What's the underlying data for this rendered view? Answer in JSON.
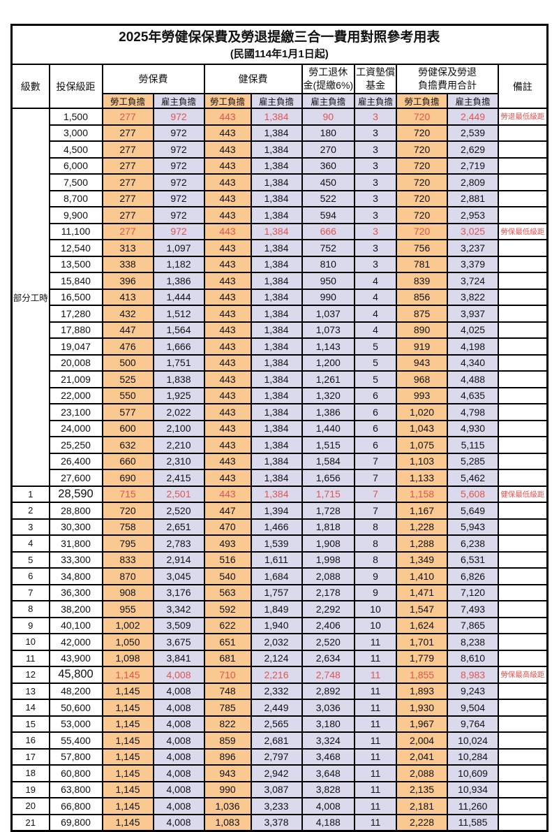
{
  "title": "2025年勞健保保費及勞退提繳三合一費用對照參考用表",
  "subtitle": "(民國114年1月1日起)",
  "colors": {
    "employee_bg": "#F9C991",
    "employer_bg": "#DBD9EC",
    "highlight_red": "#E25450"
  },
  "header": {
    "level": "級數",
    "bracket": "投保級距",
    "labor_ins": "勞保費",
    "health_ins": "健保費",
    "pension_line1": "勞工退休",
    "pension_line2": "金(提繳6%)",
    "wage_fund_line1": "工資墊償",
    "wage_fund_line2": "基金",
    "total_line1": "勞健保及勞退",
    "total_line2": "負擔費用合計",
    "note": "備註",
    "employee": "勞工負擔",
    "employer": "雇主負擔"
  },
  "group_label": "部分工時",
  "rows": [
    {
      "level": "",
      "bracket": "1,500",
      "values": [
        "277",
        "972",
        "443",
        "1,384",
        "90",
        "3",
        "720",
        "2,449"
      ],
      "note": "勞退最低級距",
      "emphasis": false
    },
    {
      "level": "",
      "bracket": "3,000",
      "values": [
        "277",
        "972",
        "443",
        "1,384",
        "180",
        "3",
        "720",
        "2,539"
      ],
      "note": "",
      "emphasis": false
    },
    {
      "level": "",
      "bracket": "4,500",
      "values": [
        "277",
        "972",
        "443",
        "1,384",
        "270",
        "3",
        "720",
        "2,629"
      ],
      "note": "",
      "emphasis": false
    },
    {
      "level": "",
      "bracket": "6,000",
      "values": [
        "277",
        "972",
        "443",
        "1,384",
        "360",
        "3",
        "720",
        "2,719"
      ],
      "note": "",
      "emphasis": false
    },
    {
      "level": "",
      "bracket": "7,500",
      "values": [
        "277",
        "972",
        "443",
        "1,384",
        "450",
        "3",
        "720",
        "2,809"
      ],
      "note": "",
      "emphasis": false
    },
    {
      "level": "",
      "bracket": "8,700",
      "values": [
        "277",
        "972",
        "443",
        "1,384",
        "522",
        "3",
        "720",
        "2,881"
      ],
      "note": "",
      "emphasis": false
    },
    {
      "level": "",
      "bracket": "9,900",
      "values": [
        "277",
        "972",
        "443",
        "1,384",
        "594",
        "3",
        "720",
        "2,953"
      ],
      "note": "",
      "emphasis": false
    },
    {
      "level": "",
      "bracket": "11,100",
      "values": [
        "277",
        "972",
        "443",
        "1,384",
        "666",
        "3",
        "720",
        "3,025"
      ],
      "note": "勞保最低級距",
      "emphasis": false
    },
    {
      "level": "",
      "bracket": "12,540",
      "values": [
        "313",
        "1,097",
        "443",
        "1,384",
        "752",
        "3",
        "756",
        "3,237"
      ],
      "note": "",
      "emphasis": false
    },
    {
      "level": "",
      "bracket": "13,500",
      "values": [
        "338",
        "1,182",
        "443",
        "1,384",
        "810",
        "3",
        "781",
        "3,379"
      ],
      "note": "",
      "emphasis": false
    },
    {
      "level": "",
      "bracket": "15,840",
      "values": [
        "396",
        "1,386",
        "443",
        "1,384",
        "950",
        "4",
        "839",
        "3,724"
      ],
      "note": "",
      "emphasis": false
    },
    {
      "level": "",
      "bracket": "16,500",
      "values": [
        "413",
        "1,444",
        "443",
        "1,384",
        "990",
        "4",
        "856",
        "3,822"
      ],
      "note": "",
      "emphasis": false
    },
    {
      "level": "",
      "bracket": "17,280",
      "values": [
        "432",
        "1,512",
        "443",
        "1,384",
        "1,037",
        "4",
        "875",
        "3,937"
      ],
      "note": "",
      "emphasis": false
    },
    {
      "level": "",
      "bracket": "17,880",
      "values": [
        "447",
        "1,564",
        "443",
        "1,384",
        "1,073",
        "4",
        "890",
        "4,025"
      ],
      "note": "",
      "emphasis": false
    },
    {
      "level": "",
      "bracket": "19,047",
      "values": [
        "476",
        "1,666",
        "443",
        "1,384",
        "1,143",
        "5",
        "919",
        "4,198"
      ],
      "note": "",
      "emphasis": false
    },
    {
      "level": "",
      "bracket": "20,008",
      "values": [
        "500",
        "1,751",
        "443",
        "1,384",
        "1,200",
        "5",
        "943",
        "4,340"
      ],
      "note": "",
      "emphasis": false
    },
    {
      "level": "",
      "bracket": "21,009",
      "values": [
        "525",
        "1,838",
        "443",
        "1,384",
        "1,261",
        "5",
        "968",
        "4,488"
      ],
      "note": "",
      "emphasis": false
    },
    {
      "level": "",
      "bracket": "22,000",
      "values": [
        "550",
        "1,925",
        "443",
        "1,384",
        "1,320",
        "6",
        "993",
        "4,635"
      ],
      "note": "",
      "emphasis": false
    },
    {
      "level": "",
      "bracket": "23,100",
      "values": [
        "577",
        "2,022",
        "443",
        "1,384",
        "1,386",
        "6",
        "1,020",
        "4,798"
      ],
      "note": "",
      "emphasis": false
    },
    {
      "level": "",
      "bracket": "24,000",
      "values": [
        "600",
        "2,100",
        "443",
        "1,384",
        "1,440",
        "6",
        "1,043",
        "4,930"
      ],
      "note": "",
      "emphasis": false
    },
    {
      "level": "",
      "bracket": "25,250",
      "values": [
        "632",
        "2,210",
        "443",
        "1,384",
        "1,515",
        "6",
        "1,075",
        "5,115"
      ],
      "note": "",
      "emphasis": false
    },
    {
      "level": "",
      "bracket": "26,400",
      "values": [
        "660",
        "2,310",
        "443",
        "1,384",
        "1,584",
        "7",
        "1,103",
        "5,285"
      ],
      "note": "",
      "emphasis": false
    },
    {
      "level": "",
      "bracket": "27,600",
      "values": [
        "690",
        "2,415",
        "443",
        "1,384",
        "1,656",
        "7",
        "1,133",
        "5,462"
      ],
      "note": "",
      "emphasis": false
    },
    {
      "level": "1",
      "bracket": "28,590",
      "values": [
        "715",
        "2,501",
        "443",
        "1,384",
        "1,715",
        "7",
        "1,158",
        "5,608"
      ],
      "note": "健保最低級距",
      "emphasis": true
    },
    {
      "level": "2",
      "bracket": "28,800",
      "values": [
        "720",
        "2,520",
        "447",
        "1,394",
        "1,728",
        "7",
        "1,167",
        "5,649"
      ],
      "note": "",
      "emphasis": false
    },
    {
      "level": "3",
      "bracket": "30,300",
      "values": [
        "758",
        "2,651",
        "470",
        "1,466",
        "1,818",
        "8",
        "1,228",
        "5,943"
      ],
      "note": "",
      "emphasis": false
    },
    {
      "level": "4",
      "bracket": "31,800",
      "values": [
        "795",
        "2,783",
        "493",
        "1,539",
        "1,908",
        "8",
        "1,288",
        "6,238"
      ],
      "note": "",
      "emphasis": false
    },
    {
      "level": "5",
      "bracket": "33,300",
      "values": [
        "833",
        "2,914",
        "516",
        "1,611",
        "1,998",
        "8",
        "1,349",
        "6,531"
      ],
      "note": "",
      "emphasis": false
    },
    {
      "level": "6",
      "bracket": "34,800",
      "values": [
        "870",
        "3,045",
        "540",
        "1,684",
        "2,088",
        "9",
        "1,410",
        "6,826"
      ],
      "note": "",
      "emphasis": false
    },
    {
      "level": "7",
      "bracket": "36,300",
      "values": [
        "908",
        "3,176",
        "563",
        "1,757",
        "2,178",
        "9",
        "1,471",
        "7,120"
      ],
      "note": "",
      "emphasis": false
    },
    {
      "level": "8",
      "bracket": "38,200",
      "values": [
        "955",
        "3,342",
        "592",
        "1,849",
        "2,292",
        "10",
        "1,547",
        "7,493"
      ],
      "note": "",
      "emphasis": false
    },
    {
      "level": "9",
      "bracket": "40,100",
      "values": [
        "1,002",
        "3,509",
        "622",
        "1,940",
        "2,406",
        "10",
        "1,624",
        "7,865"
      ],
      "note": "",
      "emphasis": false
    },
    {
      "level": "10",
      "bracket": "42,000",
      "values": [
        "1,050",
        "3,675",
        "651",
        "2,032",
        "2,520",
        "11",
        "1,701",
        "8,238"
      ],
      "note": "",
      "emphasis": false
    },
    {
      "level": "11",
      "bracket": "43,900",
      "values": [
        "1,098",
        "3,841",
        "681",
        "2,124",
        "2,634",
        "11",
        "1,779",
        "8,610"
      ],
      "note": "",
      "emphasis": false
    },
    {
      "level": "12",
      "bracket": "45,800",
      "values": [
        "1,145",
        "4,008",
        "710",
        "2,216",
        "2,748",
        "11",
        "1,855",
        "8,983"
      ],
      "note": "勞保最高級距",
      "emphasis": true
    },
    {
      "level": "13",
      "bracket": "48,200",
      "values": [
        "1,145",
        "4,008",
        "748",
        "2,332",
        "2,892",
        "11",
        "1,893",
        "9,243"
      ],
      "note": "",
      "emphasis": false
    },
    {
      "level": "14",
      "bracket": "50,600",
      "values": [
        "1,145",
        "4,008",
        "785",
        "2,449",
        "3,036",
        "11",
        "1,930",
        "9,504"
      ],
      "note": "",
      "emphasis": false
    },
    {
      "level": "15",
      "bracket": "53,000",
      "values": [
        "1,145",
        "4,008",
        "822",
        "2,565",
        "3,180",
        "11",
        "1,967",
        "9,764"
      ],
      "note": "",
      "emphasis": false
    },
    {
      "level": "16",
      "bracket": "55,400",
      "values": [
        "1,145",
        "4,008",
        "859",
        "2,681",
        "3,324",
        "11",
        "2,004",
        "10,024"
      ],
      "note": "",
      "emphasis": false
    },
    {
      "level": "17",
      "bracket": "57,800",
      "values": [
        "1,145",
        "4,008",
        "896",
        "2,797",
        "3,468",
        "11",
        "2,041",
        "10,284"
      ],
      "note": "",
      "emphasis": false
    },
    {
      "level": "18",
      "bracket": "60,800",
      "values": [
        "1,145",
        "4,008",
        "943",
        "2,942",
        "3,648",
        "11",
        "2,088",
        "10,609"
      ],
      "note": "",
      "emphasis": false
    },
    {
      "level": "19",
      "bracket": "63,800",
      "values": [
        "1,145",
        "4,008",
        "990",
        "3,087",
        "3,828",
        "11",
        "2,135",
        "10,934"
      ],
      "note": "",
      "emphasis": false
    },
    {
      "level": "20",
      "bracket": "66,800",
      "values": [
        "1,145",
        "4,008",
        "1,036",
        "3,233",
        "4,008",
        "11",
        "2,181",
        "11,260"
      ],
      "note": "",
      "emphasis": false
    },
    {
      "level": "21",
      "bracket": "69,800",
      "values": [
        "1,145",
        "4,008",
        "1,083",
        "3,378",
        "4,188",
        "11",
        "2,228",
        "11,585"
      ],
      "note": "",
      "emphasis": false
    }
  ]
}
